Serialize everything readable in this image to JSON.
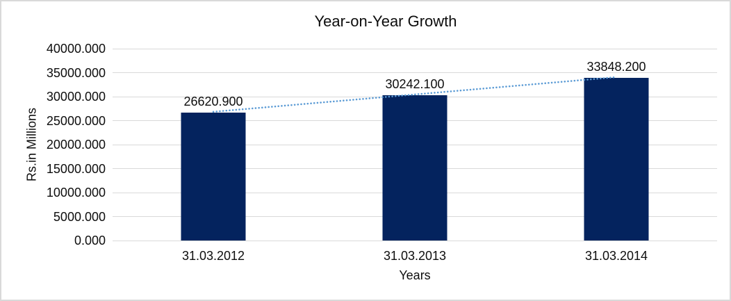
{
  "chart_data": {
    "type": "bar",
    "title": "Year-on-Year Growth",
    "xlabel": "Years",
    "ylabel": "Rs.in Millions",
    "categories": [
      "31.03.2012",
      "31.03.2013",
      "31.03.2014"
    ],
    "values": [
      26620.9,
      30242.1,
      33848.2
    ],
    "data_labels": [
      "26620.900",
      "30242.100",
      "33848.200"
    ],
    "ylim": [
      0,
      40000
    ],
    "ytick_labels": [
      "0.000",
      "5000.000",
      "10000.000",
      "15000.000",
      "20000.000",
      "25000.000",
      "30000.000",
      "35000.000",
      "40000.000"
    ],
    "grid": true,
    "legend": "none",
    "trendline": {
      "type": "linear",
      "style": "dotted"
    },
    "colors": {
      "bar": "#04235E",
      "trendline": "#5B9BD5",
      "gridline": "#D9D9D9",
      "text": "#0d0d0d",
      "border": "#D9D9D9",
      "background": "#FFFFFF"
    }
  }
}
